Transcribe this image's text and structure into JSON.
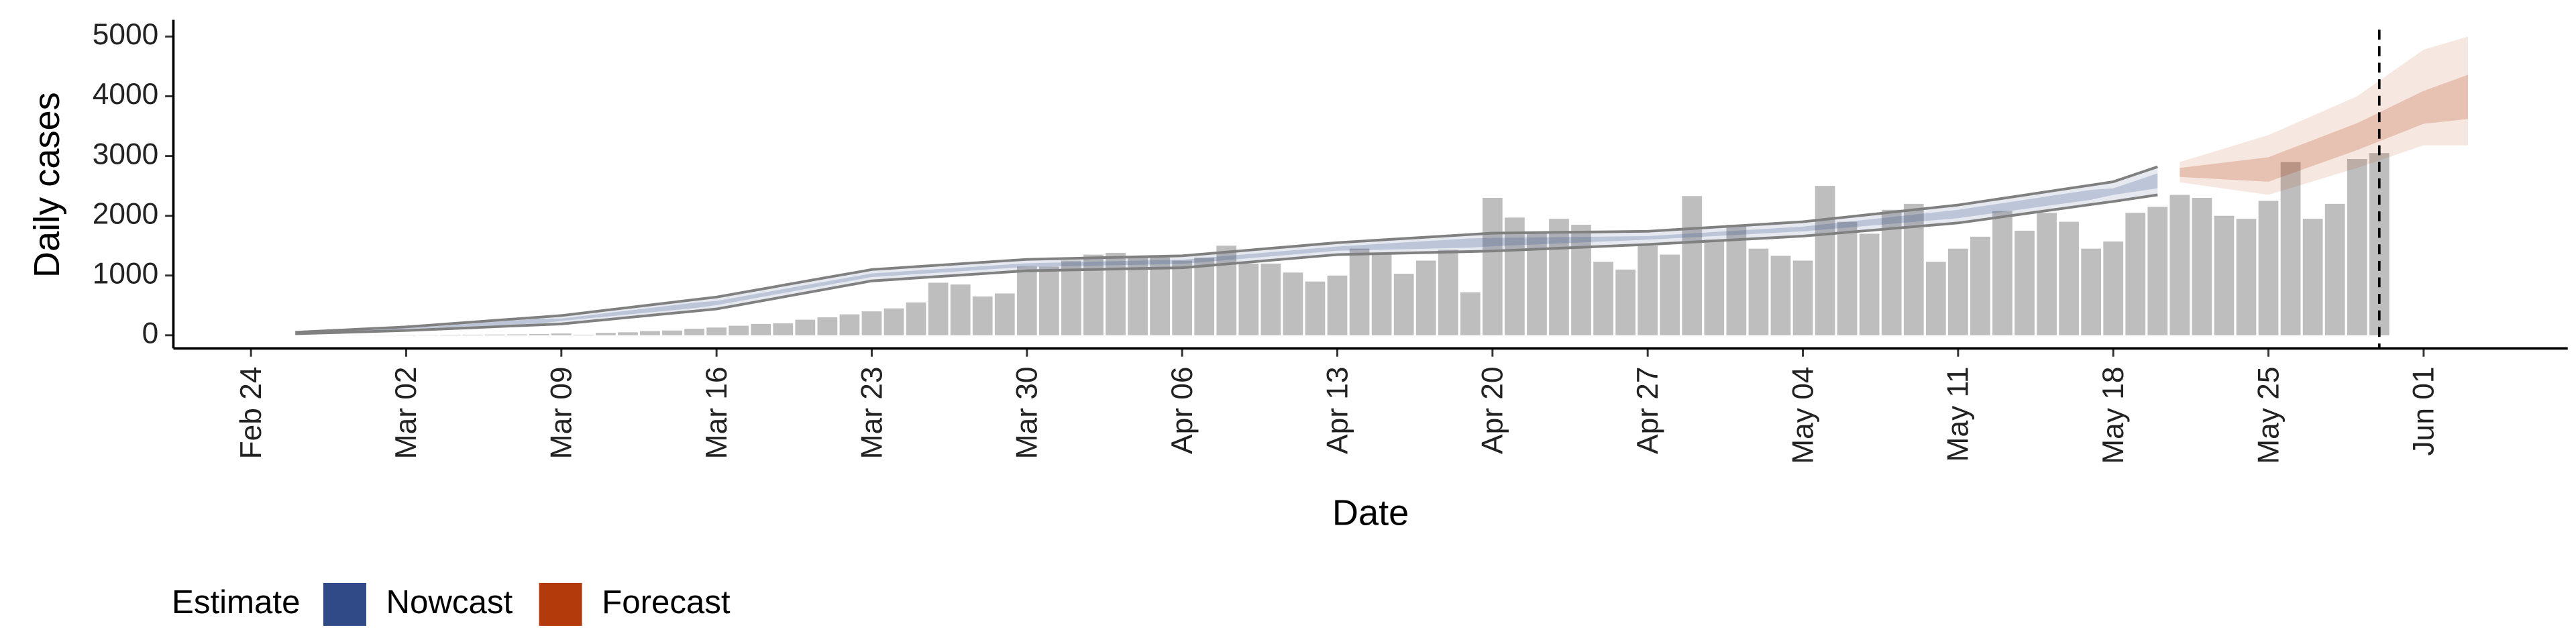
{
  "chart_data": {
    "type": "bar",
    "ylabel": "Daily cases",
    "xlabel": "Date",
    "color": "#bebebe",
    "categories": [
      null,
      null,
      null,
      "Feb 24",
      null,
      null,
      null,
      null,
      null,
      null,
      "Mar 02",
      null,
      null,
      null,
      null,
      null,
      null,
      "Mar 09",
      null,
      null,
      null,
      null,
      null,
      null,
      "Mar 16",
      null,
      null,
      null,
      null,
      null,
      null,
      "Mar 23",
      null,
      null,
      null,
      null,
      null,
      null,
      "Mar 30",
      null,
      null,
      null,
      null,
      null,
      null,
      "Apr 06",
      null,
      null,
      null,
      null,
      null,
      null,
      "Apr 13",
      null,
      null,
      null,
      null,
      null,
      null,
      "Apr 20",
      null,
      null,
      null,
      null,
      null,
      null,
      "Apr 27",
      null,
      null,
      null,
      null,
      null,
      null,
      "May 04",
      null,
      null,
      null,
      null,
      null,
      null,
      "May 11",
      null,
      null,
      null,
      null,
      null,
      null,
      "May 18",
      null,
      null,
      null,
      null,
      null,
      null,
      "May 25",
      null,
      null,
      null,
      null,
      null,
      null,
      "Jun 01",
      null,
      null,
      null,
      null,
      null,
      null
    ],
    "values": [
      null,
      null,
      null,
      null,
      null,
      0,
      0,
      1,
      2,
      3,
      5,
      5,
      8,
      10,
      12,
      15,
      20,
      30,
      10,
      40,
      50,
      70,
      80,
      110,
      130,
      160,
      190,
      200,
      260,
      300,
      350,
      400,
      450,
      550,
      880,
      850,
      650,
      700,
      1150,
      1150,
      1250,
      1350,
      1380,
      1300,
      1300,
      1250,
      1300,
      1500,
      1200,
      1200,
      1050,
      900,
      1000,
      1450,
      1350,
      1030,
      1250,
      1430,
      720,
      2300,
      1970,
      1700,
      1950,
      1850,
      1230,
      1100,
      1500,
      1350,
      2330,
      1600,
      1850,
      1450,
      1330,
      1250,
      2500,
      1900,
      1700,
      2100,
      2200,
      1230,
      1450,
      1650,
      2080,
      1750,
      2050,
      1900,
      1450,
      1570,
      2050,
      2150,
      2350,
      2300,
      2000,
      1950,
      2250,
      2900,
      1950,
      2200,
      2950,
      3050,
      null,
      null,
      null,
      null,
      null,
      null,
      null,
      null
    ],
    "series": [
      {
        "name": "Nowcast",
        "color": "#2f4a87",
        "outline_color": "#808080",
        "lower": [
          null,
          null,
          null,
          null,
          null,
          25,
          36,
          47,
          58,
          69,
          80,
          96,
          111,
          127,
          143,
          159,
          174,
          190,
          226,
          261,
          297,
          333,
          369,
          404,
          440,
          507,
          574,
          641,
          709,
          776,
          843,
          910,
          934,
          959,
          983,
          1007,
          1031,
          1056,
          1080,
          1087,
          1094,
          1101,
          1109,
          1116,
          1123,
          1130,
          1161,
          1193,
          1224,
          1256,
          1287,
          1319,
          1350,
          1359,
          1367,
          1376,
          1384,
          1393,
          1401,
          1410,
          1426,
          1441,
          1457,
          1473,
          1489,
          1504,
          1520,
          1540,
          1560,
          1580,
          1600,
          1620,
          1640,
          1660,
          1691,
          1723,
          1754,
          1786,
          1817,
          1849,
          1880,
          1931,
          1983,
          2034,
          2086,
          2137,
          2189,
          2240,
          2295,
          2350,
          null,
          null,
          null,
          null,
          null,
          null,
          null,
          null,
          null,
          null,
          null,
          null,
          null,
          null,
          null,
          null,
          null,
          null
        ],
        "upper": [
          null,
          null,
          null,
          null,
          null,
          50,
          68,
          86,
          104,
          122,
          140,
          167,
          194,
          221,
          249,
          276,
          303,
          330,
          374,
          419,
          463,
          507,
          551,
          596,
          640,
          706,
          771,
          837,
          903,
          969,
          1034,
          1100,
          1124,
          1149,
          1173,
          1197,
          1221,
          1246,
          1270,
          1279,
          1287,
          1296,
          1304,
          1313,
          1321,
          1330,
          1361,
          1393,
          1424,
          1456,
          1487,
          1519,
          1550,
          1573,
          1596,
          1619,
          1641,
          1664,
          1687,
          1710,
          1714,
          1719,
          1723,
          1727,
          1731,
          1736,
          1740,
          1763,
          1786,
          1809,
          1831,
          1854,
          1877,
          1900,
          1940,
          1980,
          2020,
          2060,
          2100,
          2140,
          2180,
          2236,
          2291,
          2347,
          2403,
          2459,
          2514,
          2570,
          2695,
          2820,
          null,
          null,
          null,
          null,
          null,
          null,
          null,
          null,
          null,
          null,
          null,
          null,
          null,
          null,
          null,
          null,
          null,
          null
        ],
        "inner_lower": [
          null,
          null,
          null,
          null,
          null,
          35,
          46,
          57,
          68,
          79,
          105,
          121,
          136,
          152,
          168,
          184,
          199,
          240,
          276,
          311,
          347,
          383,
          419,
          454,
          505,
          572,
          639,
          706,
          774,
          841,
          908,
          975,
          999,
          1024,
          1048,
          1072,
          1096,
          1121,
          1145,
          1152,
          1159,
          1166,
          1174,
          1181,
          1188,
          1195,
          1226,
          1258,
          1289,
          1321,
          1352,
          1384,
          1415,
          1424,
          1432,
          1441,
          1449,
          1458,
          1466,
          1490,
          1506,
          1521,
          1537,
          1553,
          1569,
          1584,
          1600,
          1620,
          1640,
          1660,
          1680,
          1700,
          1720,
          1740,
          1771,
          1803,
          1834,
          1866,
          1897,
          1929,
          1960,
          2011,
          2063,
          2114,
          2166,
          2217,
          2269,
          2350,
          2405,
          2460,
          null,
          null,
          null,
          null,
          null,
          null,
          null,
          null,
          null,
          null,
          null,
          null,
          null,
          null,
          null,
          null,
          null,
          null
        ],
        "inner_upper": [
          null,
          null,
          null,
          null,
          null,
          40,
          58,
          76,
          94,
          112,
          115,
          142,
          169,
          196,
          224,
          251,
          278,
          280,
          324,
          369,
          413,
          457,
          501,
          546,
          575,
          641,
          706,
          772,
          838,
          904,
          969,
          1035,
          1059,
          1084,
          1108,
          1132,
          1156,
          1181,
          1205,
          1214,
          1222,
          1231,
          1239,
          1248,
          1256,
          1265,
          1296,
          1328,
          1359,
          1391,
          1422,
          1454,
          1485,
          1508,
          1531,
          1554,
          1576,
          1599,
          1622,
          1630,
          1634,
          1639,
          1643,
          1647,
          1651,
          1656,
          1660,
          1683,
          1706,
          1729,
          1751,
          1774,
          1797,
          1820,
          1860,
          1900,
          1940,
          1980,
          2020,
          2060,
          2100,
          2156,
          2211,
          2267,
          2323,
          2379,
          2434,
          2460,
          2585,
          2710,
          null,
          null,
          null,
          null,
          null,
          null,
          null,
          null,
          null,
          null,
          null,
          null,
          null,
          null,
          null,
          null,
          null,
          null
        ]
      },
      {
        "name": "Forecast",
        "color": "#b33a0a",
        "lower": [
          null,
          null,
          null,
          null,
          null,
          null,
          null,
          null,
          null,
          null,
          null,
          null,
          null,
          null,
          null,
          null,
          null,
          null,
          null,
          null,
          null,
          null,
          null,
          null,
          null,
          null,
          null,
          null,
          null,
          null,
          null,
          null,
          null,
          null,
          null,
          null,
          null,
          null,
          null,
          null,
          null,
          null,
          null,
          null,
          null,
          null,
          null,
          null,
          null,
          null,
          null,
          null,
          null,
          null,
          null,
          null,
          null,
          null,
          null,
          null,
          null,
          null,
          null,
          null,
          null,
          null,
          null,
          null,
          null,
          null,
          null,
          null,
          null,
          null,
          null,
          null,
          null,
          null,
          null,
          null,
          null,
          null,
          null,
          null,
          null,
          null,
          null,
          null,
          null,
          null,
          2560,
          2508,
          2455,
          2403,
          2350,
          2463,
          2575,
          2688,
          2800,
          2927,
          3053,
          3180,
          3180,
          3180,
          null,
          null,
          null,
          null
        ],
        "upper": [
          null,
          null,
          null,
          null,
          null,
          null,
          null,
          null,
          null,
          null,
          null,
          null,
          null,
          null,
          null,
          null,
          null,
          null,
          null,
          null,
          null,
          null,
          null,
          null,
          null,
          null,
          null,
          null,
          null,
          null,
          null,
          null,
          null,
          null,
          null,
          null,
          null,
          null,
          null,
          null,
          null,
          null,
          null,
          null,
          null,
          null,
          null,
          null,
          null,
          null,
          null,
          null,
          null,
          null,
          null,
          null,
          null,
          null,
          null,
          null,
          null,
          null,
          null,
          null,
          null,
          null,
          null,
          null,
          null,
          null,
          null,
          null,
          null,
          null,
          null,
          null,
          null,
          null,
          null,
          null,
          null,
          null,
          null,
          null,
          null,
          null,
          null,
          null,
          null,
          null,
          2900,
          3013,
          3125,
          3238,
          3350,
          3513,
          3675,
          3838,
          4000,
          4260,
          4520,
          4780,
          4890,
          5000,
          null,
          null,
          null,
          null
        ],
        "inner_lower": [
          null,
          null,
          null,
          null,
          null,
          null,
          null,
          null,
          null,
          null,
          null,
          null,
          null,
          null,
          null,
          null,
          null,
          null,
          null,
          null,
          null,
          null,
          null,
          null,
          null,
          null,
          null,
          null,
          null,
          null,
          null,
          null,
          null,
          null,
          null,
          null,
          null,
          null,
          null,
          null,
          null,
          null,
          null,
          null,
          null,
          null,
          null,
          null,
          null,
          null,
          null,
          null,
          null,
          null,
          null,
          null,
          null,
          null,
          null,
          null,
          null,
          null,
          null,
          null,
          null,
          null,
          null,
          null,
          null,
          null,
          null,
          null,
          null,
          null,
          null,
          null,
          null,
          null,
          null,
          null,
          null,
          null,
          null,
          null,
          null,
          null,
          null,
          null,
          null,
          null,
          2650,
          2630,
          2610,
          2590,
          2570,
          2703,
          2835,
          2968,
          3100,
          3247,
          3393,
          3540,
          3580,
          3620,
          null,
          null,
          null,
          null
        ],
        "inner_upper": [
          null,
          null,
          null,
          null,
          null,
          null,
          null,
          null,
          null,
          null,
          null,
          null,
          null,
          null,
          null,
          null,
          null,
          null,
          null,
          null,
          null,
          null,
          null,
          null,
          null,
          null,
          null,
          null,
          null,
          null,
          null,
          null,
          null,
          null,
          null,
          null,
          null,
          null,
          null,
          null,
          null,
          null,
          null,
          null,
          null,
          null,
          null,
          null,
          null,
          null,
          null,
          null,
          null,
          null,
          null,
          null,
          null,
          null,
          null,
          null,
          null,
          null,
          null,
          null,
          null,
          null,
          null,
          null,
          null,
          null,
          null,
          null,
          null,
          null,
          null,
          null,
          null,
          null,
          null,
          null,
          null,
          null,
          null,
          null,
          null,
          null,
          null,
          null,
          null,
          null,
          2800,
          2845,
          2890,
          2935,
          2980,
          3123,
          3265,
          3408,
          3550,
          3730,
          3910,
          4090,
          4225,
          4360,
          null,
          null,
          null,
          null
        ]
      }
    ],
    "vline": 99,
    "ylim": [
      -220,
      5280
    ],
    "yticks": [
      0,
      1000,
      2000,
      3000,
      4000,
      5000
    ],
    "legend_title": "Estimate",
    "legend_position": "bottom"
  }
}
